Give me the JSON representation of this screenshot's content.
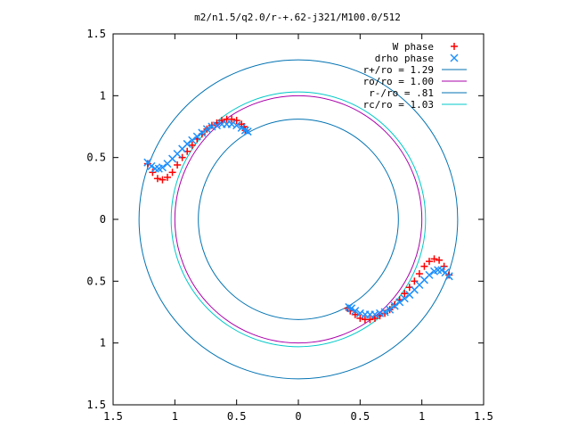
{
  "chart_data": {
    "type": "scatter",
    "title": "m2/n1.5/q2.0/r-+.62-j321/M100.0/512",
    "xlabel": "",
    "ylabel": "",
    "xlim": [
      -1.5,
      1.5
    ],
    "ylim": [
      -1.5,
      1.5
    ],
    "x_tick_values": [
      -1.5,
      -1,
      -0.5,
      0,
      0.5,
      1,
      1.5
    ],
    "x_tick_labels": [
      "1.5",
      "1",
      "0.5",
      "0",
      "0.5",
      "1",
      "1.5"
    ],
    "y_tick_values": [
      1.5,
      1,
      0.5,
      0,
      -0.5,
      -1,
      -1.5
    ],
    "y_tick_labels": [
      "1.5",
      "1",
      "0.5",
      "0",
      "0.5",
      "1",
      "1.5"
    ],
    "grid": false,
    "legend_position": "top-right",
    "series": [
      {
        "name": "W phase",
        "kind": "points",
        "marker": "plus",
        "color": "#ff0000",
        "x": [
          -1.22,
          -1.18,
          -1.14,
          -1.1,
          -1.06,
          -1.02,
          -0.98,
          -0.94,
          -0.9,
          -0.86,
          -0.82,
          -0.78,
          -0.74,
          -0.7,
          -0.66,
          -0.62,
          -0.58,
          -0.54,
          -0.5,
          -0.46,
          -0.44,
          -0.43,
          1.22,
          1.18,
          1.14,
          1.1,
          1.06,
          1.02,
          0.98,
          0.94,
          0.9,
          0.86,
          0.82,
          0.78,
          0.74,
          0.7,
          0.66,
          0.62,
          0.58,
          0.54,
          0.5,
          0.46,
          0.42,
          0.4
        ],
        "y": [
          0.45,
          0.38,
          0.33,
          0.32,
          0.34,
          0.38,
          0.44,
          0.5,
          0.55,
          0.6,
          0.65,
          0.69,
          0.73,
          0.76,
          0.78,
          0.8,
          0.81,
          0.81,
          0.8,
          0.77,
          0.75,
          0.72,
          -0.45,
          -0.38,
          -0.33,
          -0.32,
          -0.34,
          -0.38,
          -0.44,
          -0.5,
          -0.55,
          -0.6,
          -0.65,
          -0.69,
          -0.73,
          -0.76,
          -0.78,
          -0.8,
          -0.81,
          -0.81,
          -0.8,
          -0.77,
          -0.74,
          -0.72
        ]
      },
      {
        "name": "drho phase",
        "kind": "points",
        "marker": "cross",
        "color": "#1e90ff",
        "x": [
          -1.22,
          -1.19,
          -1.16,
          -1.13,
          -1.1,
          -1.06,
          -1.02,
          -0.98,
          -0.94,
          -0.9,
          -0.86,
          -0.82,
          -0.78,
          -0.74,
          -0.7,
          -0.66,
          -0.62,
          -0.58,
          -0.54,
          -0.5,
          -0.46,
          -0.43,
          -0.41,
          1.22,
          1.19,
          1.16,
          1.13,
          1.1,
          1.06,
          1.02,
          0.98,
          0.94,
          0.9,
          0.86,
          0.82,
          0.78,
          0.74,
          0.7,
          0.66,
          0.62,
          0.58,
          0.54,
          0.5,
          0.46,
          0.43,
          0.41
        ],
        "y": [
          0.46,
          0.43,
          0.41,
          0.41,
          0.42,
          0.45,
          0.49,
          0.53,
          0.57,
          0.61,
          0.64,
          0.67,
          0.7,
          0.73,
          0.75,
          0.76,
          0.77,
          0.77,
          0.77,
          0.76,
          0.74,
          0.72,
          0.71,
          -0.46,
          -0.43,
          -0.41,
          -0.41,
          -0.42,
          -0.45,
          -0.49,
          -0.53,
          -0.57,
          -0.61,
          -0.64,
          -0.67,
          -0.7,
          -0.73,
          -0.75,
          -0.76,
          -0.77,
          -0.77,
          -0.77,
          -0.76,
          -0.74,
          -0.72,
          -0.71
        ]
      },
      {
        "name": "r+/ro = 1.29",
        "kind": "circle",
        "radius": 1.29,
        "color": "#0072b2"
      },
      {
        "name": "ro/ro = 1.00",
        "kind": "circle",
        "radius": 1.0,
        "color": "#aa00aa"
      },
      {
        "name": "r-/ro = .81",
        "kind": "circle",
        "radius": 0.81,
        "color": "#0072b2"
      },
      {
        "name": "rc/ro = 1.03",
        "kind": "circle",
        "radius": 1.03,
        "color": "#00c8c8"
      }
    ]
  }
}
